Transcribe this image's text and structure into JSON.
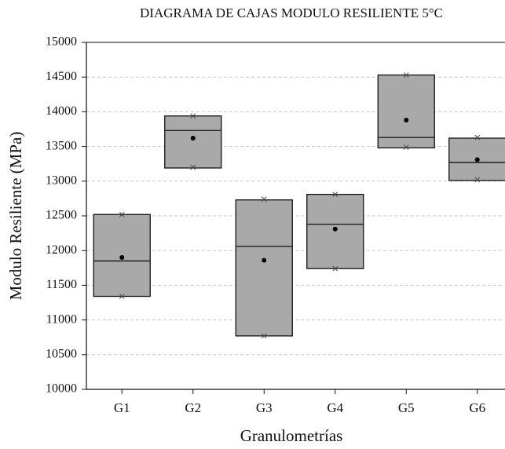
{
  "chart_data": {
    "type": "box",
    "title": "DIAGRAMA DE CAJAS MODULO RESILIENTE 5°C",
    "x_label": "Granulometrías",
    "y_label": "Modulo Resiliente (MPa)",
    "categories": [
      "G1",
      "G2",
      "G3",
      "G4",
      "G5",
      "G6"
    ],
    "q1": [
      11340,
      13190,
      10770,
      11740,
      13480,
      13010
    ],
    "median": [
      11850,
      13730,
      12060,
      12380,
      13630,
      13270
    ],
    "q3": [
      12520,
      13940,
      12730,
      12810,
      14530,
      13620
    ],
    "min": [
      11340,
      13200,
      10770,
      11740,
      13490,
      13020
    ],
    "max": [
      12520,
      13940,
      12740,
      12810,
      14530,
      13630
    ],
    "mean": [
      11900,
      13620,
      11860,
      12310,
      13880,
      13310
    ],
    "color": "#a9a9a9",
    "ylim": [
      10000,
      15000
    ],
    "yticks": [
      10000,
      10500,
      11000,
      11500,
      12000,
      12500,
      13000,
      13500,
      14000,
      14500,
      15000
    ],
    "grid": true
  }
}
